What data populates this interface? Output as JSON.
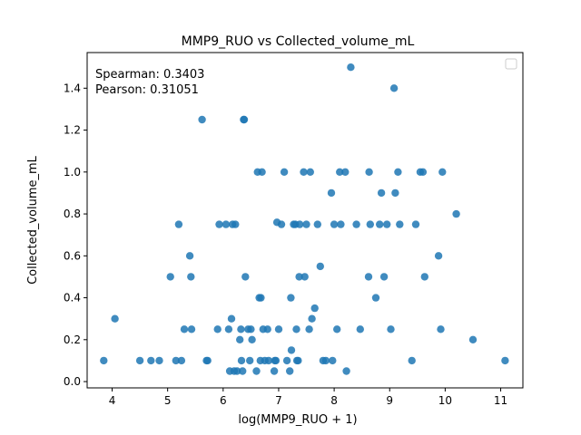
{
  "chart_data": {
    "type": "scatter",
    "title": "MMP9_RUO vs Collected_volume_mL",
    "xlabel": "log(MMP9_RUO + 1)",
    "ylabel": "Collected_volume_mL",
    "xlim": [
      3.55,
      11.4
    ],
    "ylim": [
      -0.03,
      1.57
    ],
    "xticks": [
      "4",
      "5",
      "6",
      "7",
      "8",
      "9",
      "10",
      "11"
    ],
    "yticks": [
      "0.0",
      "0.2",
      "0.4",
      "0.6",
      "0.8",
      "1.0",
      "1.2",
      "1.4"
    ],
    "annotations": [
      "Spearman: 0.3403",
      "Pearson: 0.31051"
    ],
    "grid": false,
    "legend": "top-right (empty)",
    "point_color": "#1f77b4",
    "points": [
      [
        3.85,
        0.1
      ],
      [
        4.05,
        0.3
      ],
      [
        4.5,
        0.1
      ],
      [
        4.7,
        0.1
      ],
      [
        4.85,
        0.1
      ],
      [
        5.05,
        0.5
      ],
      [
        5.15,
        0.1
      ],
      [
        5.2,
        0.75
      ],
      [
        5.25,
        0.1
      ],
      [
        5.3,
        0.25
      ],
      [
        5.4,
        0.6
      ],
      [
        5.42,
        0.5
      ],
      [
        5.43,
        0.25
      ],
      [
        5.62,
        1.25
      ],
      [
        5.7,
        0.1
      ],
      [
        5.72,
        0.1
      ],
      [
        5.9,
        0.25
      ],
      [
        5.93,
        0.75
      ],
      [
        6.05,
        0.75
      ],
      [
        6.1,
        0.25
      ],
      [
        6.12,
        0.05
      ],
      [
        6.15,
        0.3
      ],
      [
        6.17,
        0.75
      ],
      [
        6.2,
        0.05
      ],
      [
        6.22,
        0.75
      ],
      [
        6.25,
        0.05
      ],
      [
        6.3,
        0.2
      ],
      [
        6.32,
        0.25
      ],
      [
        6.33,
        0.1
      ],
      [
        6.35,
        0.05
      ],
      [
        6.37,
        1.25
      ],
      [
        6.38,
        1.25
      ],
      [
        6.4,
        0.5
      ],
      [
        6.45,
        0.25
      ],
      [
        6.48,
        0.1
      ],
      [
        6.5,
        0.25
      ],
      [
        6.52,
        0.2
      ],
      [
        6.6,
        0.05
      ],
      [
        6.62,
        1.0
      ],
      [
        6.65,
        0.4
      ],
      [
        6.67,
        0.1
      ],
      [
        6.68,
        0.4
      ],
      [
        6.7,
        1.0
      ],
      [
        6.72,
        0.25
      ],
      [
        6.75,
        0.1
      ],
      [
        6.8,
        0.25
      ],
      [
        6.82,
        0.1
      ],
      [
        6.92,
        0.05
      ],
      [
        6.93,
        0.1
      ],
      [
        6.95,
        0.1
      ],
      [
        6.97,
        0.76
      ],
      [
        7.0,
        0.25
      ],
      [
        7.05,
        0.75
      ],
      [
        7.1,
        1.0
      ],
      [
        7.15,
        0.1
      ],
      [
        7.2,
        0.05
      ],
      [
        7.22,
        0.4
      ],
      [
        7.23,
        0.15
      ],
      [
        7.27,
        0.75
      ],
      [
        7.3,
        0.75
      ],
      [
        7.32,
        0.25
      ],
      [
        7.33,
        0.1
      ],
      [
        7.35,
        0.1
      ],
      [
        7.37,
        0.5
      ],
      [
        7.38,
        0.75
      ],
      [
        7.45,
        1.0
      ],
      [
        7.47,
        0.5
      ],
      [
        7.5,
        0.75
      ],
      [
        7.55,
        0.25
      ],
      [
        7.57,
        1.0
      ],
      [
        7.6,
        0.3
      ],
      [
        7.65,
        0.35
      ],
      [
        7.7,
        0.75
      ],
      [
        7.75,
        0.55
      ],
      [
        7.8,
        0.1
      ],
      [
        7.85,
        0.1
      ],
      [
        7.95,
        0.9
      ],
      [
        7.97,
        0.1
      ],
      [
        8.0,
        0.75
      ],
      [
        8.05,
        0.25
      ],
      [
        8.1,
        1.0
      ],
      [
        8.12,
        0.75
      ],
      [
        8.2,
        1.0
      ],
      [
        8.22,
        0.05
      ],
      [
        8.3,
        1.5
      ],
      [
        8.4,
        0.75
      ],
      [
        8.47,
        0.25
      ],
      [
        8.62,
        0.5
      ],
      [
        8.63,
        1.0
      ],
      [
        8.65,
        0.75
      ],
      [
        8.75,
        0.4
      ],
      [
        8.82,
        0.75
      ],
      [
        8.85,
        0.9
      ],
      [
        8.9,
        0.5
      ],
      [
        8.95,
        0.75
      ],
      [
        9.02,
        0.25
      ],
      [
        9.08,
        1.4
      ],
      [
        9.1,
        0.9
      ],
      [
        9.15,
        1.0
      ],
      [
        9.18,
        0.75
      ],
      [
        9.4,
        0.1
      ],
      [
        9.47,
        0.75
      ],
      [
        9.55,
        1.0
      ],
      [
        9.6,
        1.0
      ],
      [
        9.63,
        0.5
      ],
      [
        9.88,
        0.6
      ],
      [
        9.92,
        0.25
      ],
      [
        9.95,
        1.0
      ],
      [
        10.2,
        0.8
      ],
      [
        10.5,
        0.2
      ],
      [
        11.08,
        0.1
      ]
    ]
  }
}
